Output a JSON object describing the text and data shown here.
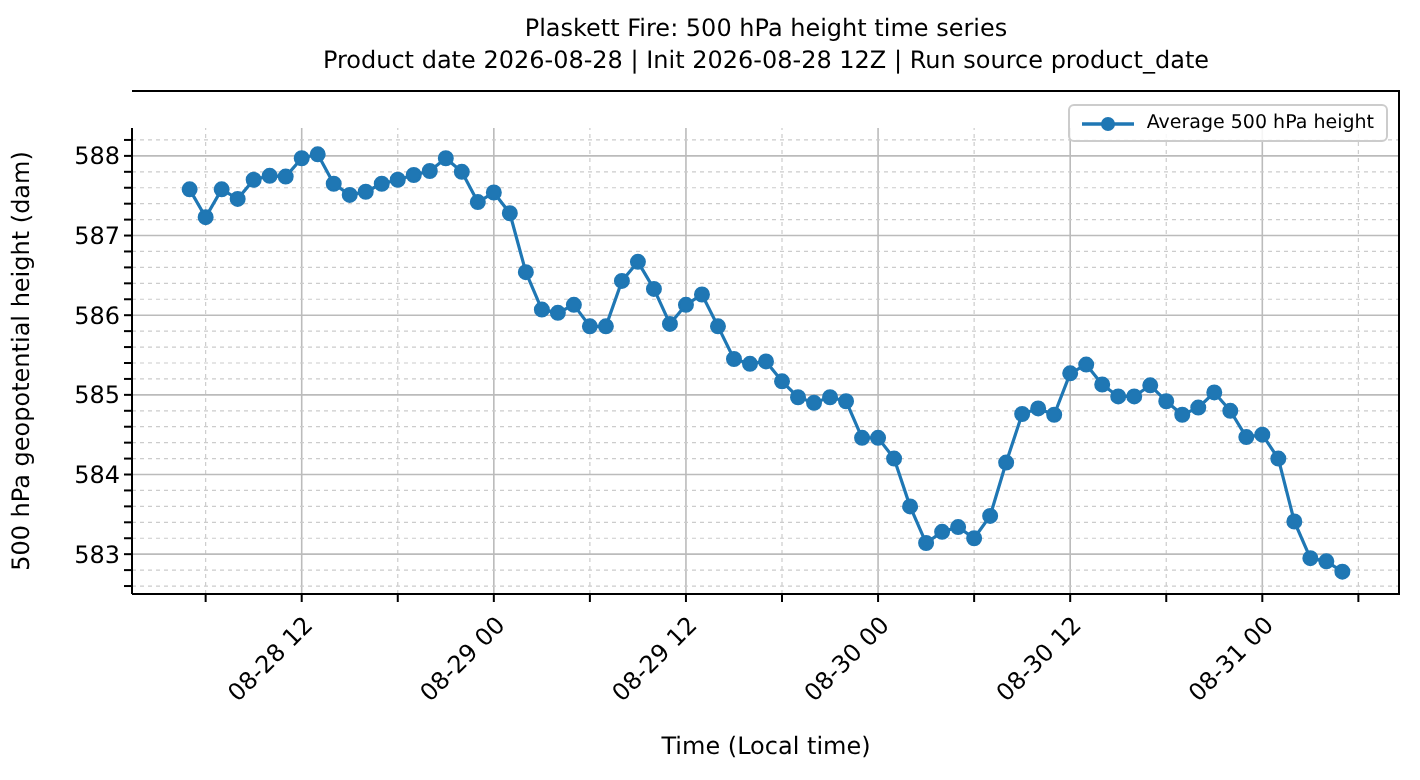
{
  "chart_data": {
    "type": "line",
    "title": "Plaskett Fire: 500 hPa height time series",
    "subtitle": "Product date 2026-08-28 | Init 2026-08-28 12Z | Run source product_date",
    "xlabel": "Time (Local time)",
    "ylabel": "500 hPa geopotential height (dam)",
    "x": [
      "2026-08-28T05:00",
      "2026-08-28T06:00",
      "2026-08-28T07:00",
      "2026-08-28T08:00",
      "2026-08-28T09:00",
      "2026-08-28T10:00",
      "2026-08-28T11:00",
      "2026-08-28T12:00",
      "2026-08-28T13:00",
      "2026-08-28T14:00",
      "2026-08-28T15:00",
      "2026-08-28T16:00",
      "2026-08-28T17:00",
      "2026-08-28T18:00",
      "2026-08-28T19:00",
      "2026-08-28T20:00",
      "2026-08-28T21:00",
      "2026-08-28T22:00",
      "2026-08-28T23:00",
      "2026-08-29T00:00",
      "2026-08-29T01:00",
      "2026-08-29T02:00",
      "2026-08-29T03:00",
      "2026-08-29T04:00",
      "2026-08-29T05:00",
      "2026-08-29T06:00",
      "2026-08-29T07:00",
      "2026-08-29T08:00",
      "2026-08-29T09:00",
      "2026-08-29T10:00",
      "2026-08-29T11:00",
      "2026-08-29T12:00",
      "2026-08-29T13:00",
      "2026-08-29T14:00",
      "2026-08-29T15:00",
      "2026-08-29T16:00",
      "2026-08-29T17:00",
      "2026-08-29T18:00",
      "2026-08-29T19:00",
      "2026-08-29T20:00",
      "2026-08-29T21:00",
      "2026-08-29T22:00",
      "2026-08-29T23:00",
      "2026-08-30T00:00",
      "2026-08-30T01:00",
      "2026-08-30T02:00",
      "2026-08-30T03:00",
      "2026-08-30T04:00",
      "2026-08-30T05:00",
      "2026-08-30T06:00",
      "2026-08-30T07:00",
      "2026-08-30T08:00",
      "2026-08-30T09:00",
      "2026-08-30T10:00",
      "2026-08-30T11:00",
      "2026-08-30T12:00",
      "2026-08-30T13:00",
      "2026-08-30T14:00",
      "2026-08-30T15:00",
      "2026-08-30T16:00",
      "2026-08-30T17:00",
      "2026-08-30T18:00",
      "2026-08-30T19:00",
      "2026-08-30T20:00",
      "2026-08-30T21:00",
      "2026-08-30T22:00",
      "2026-08-30T23:00",
      "2026-08-31T00:00",
      "2026-08-31T01:00",
      "2026-08-31T02:00",
      "2026-08-31T03:00",
      "2026-08-31T04:00",
      "2026-08-31T05:00"
    ],
    "series": [
      {
        "name": "Average 500 hPa height",
        "color": "#1f77b4",
        "values": [
          587.58,
          587.23,
          587.58,
          587.46,
          587.7,
          587.75,
          587.74,
          587.97,
          588.02,
          587.65,
          587.51,
          587.55,
          587.65,
          587.7,
          587.76,
          587.81,
          587.97,
          587.8,
          587.42,
          587.54,
          587.28,
          586.54,
          586.07,
          586.03,
          586.13,
          585.86,
          585.86,
          586.43,
          586.67,
          586.33,
          585.89,
          586.13,
          586.26,
          585.86,
          585.45,
          585.39,
          585.42,
          585.17,
          584.97,
          584.9,
          584.97,
          584.92,
          584.46,
          584.46,
          584.2,
          583.6,
          583.14,
          583.28,
          583.34,
          583.2,
          583.48,
          584.15,
          584.76,
          584.83,
          584.75,
          585.27,
          585.38,
          585.13,
          584.98,
          584.98,
          585.12,
          584.92,
          584.75,
          584.84,
          585.03,
          584.8,
          584.47,
          584.5,
          584.2,
          583.41,
          582.95,
          582.91,
          582.78
        ]
      }
    ],
    "xlim": [
      "2026-08-28T01:24",
      "2026-08-31T08:36"
    ],
    "xticks": [
      {
        "value": "2026-08-28T06:00",
        "label": null
      },
      {
        "value": "2026-08-28T12:00",
        "label": "08-28 12"
      },
      {
        "value": "2026-08-28T18:00",
        "label": null
      },
      {
        "value": "2026-08-29T00:00",
        "label": "08-29 00"
      },
      {
        "value": "2026-08-29T06:00",
        "label": null
      },
      {
        "value": "2026-08-29T12:00",
        "label": "08-29 12"
      },
      {
        "value": "2026-08-29T18:00",
        "label": null
      },
      {
        "value": "2026-08-30T00:00",
        "label": "08-30 00"
      },
      {
        "value": "2026-08-30T06:00",
        "label": null
      },
      {
        "value": "2026-08-30T12:00",
        "label": "08-30 12"
      },
      {
        "value": "2026-08-30T18:00",
        "label": null
      },
      {
        "value": "2026-08-31T00:00",
        "label": "08-31 00"
      },
      {
        "value": "2026-08-31T06:00",
        "label": null
      }
    ],
    "ylim": [
      582.5,
      588.35
    ],
    "yticks": [
      {
        "value": 582.6,
        "label": null
      },
      {
        "value": 582.8,
        "label": null
      },
      583,
      {
        "value": 583.2,
        "label": null
      },
      {
        "value": 583.4,
        "label": null
      },
      {
        "value": 583.6,
        "label": null
      },
      {
        "value": 583.8,
        "label": null
      },
      584,
      {
        "value": 584.2,
        "label": null
      },
      {
        "value": 584.4,
        "label": null
      },
      {
        "value": 584.6,
        "label": null
      },
      {
        "value": 584.8,
        "label": null
      },
      585,
      {
        "value": 585.2,
        "label": null
      },
      {
        "value": 585.4,
        "label": null
      },
      {
        "value": 585.6,
        "label": null
      },
      {
        "value": 585.8,
        "label": null
      },
      586,
      {
        "value": 586.2,
        "label": null
      },
      {
        "value": 586.4,
        "label": null
      },
      {
        "value": 586.6,
        "label": null
      },
      {
        "value": 586.8,
        "label": null
      },
      587,
      {
        "value": 587.2,
        "label": null
      },
      {
        "value": 587.4,
        "label": null
      },
      {
        "value": 587.6,
        "label": null
      },
      {
        "value": 587.8,
        "label": null
      },
      588,
      {
        "value": 588.2,
        "label": null
      }
    ],
    "grid": true,
    "legend": "top right",
    "marker": "circle",
    "line_style": "solid"
  }
}
